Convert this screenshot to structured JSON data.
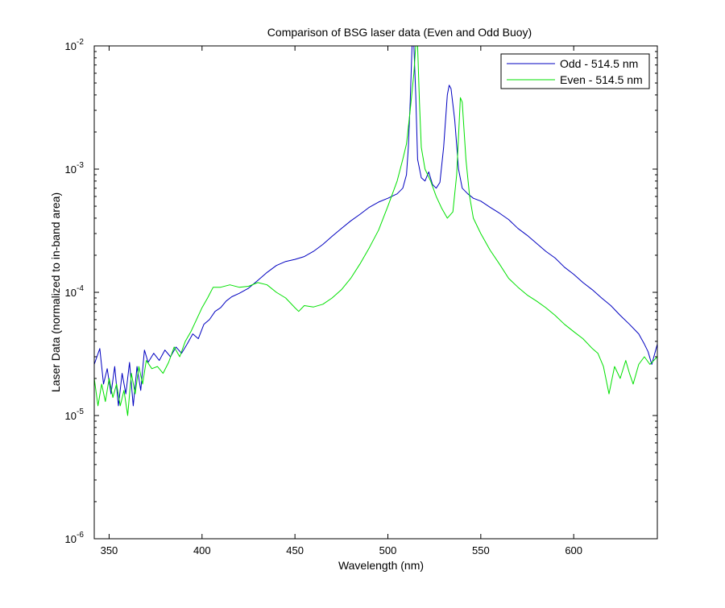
{
  "chart_data": {
    "type": "line",
    "title": "Comparison of BSG laser data (Even and Odd Buoy)",
    "xlabel": "Wavelength (nm)",
    "ylabel": "Laser Data (normalized to in-band area)",
    "xlim": [
      342,
      645
    ],
    "ylim": [
      1e-06,
      0.01
    ],
    "yscale": "log",
    "grid": false,
    "legend_position": "top-right",
    "x_ticks": [
      "350",
      "400",
      "450",
      "500",
      "550",
      "600"
    ],
    "y_ticks": [
      {
        "base": "10",
        "exp": "-6"
      },
      {
        "base": "10",
        "exp": "-5"
      },
      {
        "base": "10",
        "exp": "-4"
      },
      {
        "base": "10",
        "exp": "-3"
      },
      {
        "base": "10",
        "exp": "-2"
      }
    ],
    "series": [
      {
        "name": "Odd - 514.5 nm",
        "color": "#0000c0",
        "points": [
          [
            342,
            2.6e-05
          ],
          [
            345,
            3.5e-05
          ],
          [
            347,
            1.8e-05
          ],
          [
            349,
            2.4e-05
          ],
          [
            351,
            1.5e-05
          ],
          [
            353,
            2.5e-05
          ],
          [
            355,
            1.2e-05
          ],
          [
            357,
            2.2e-05
          ],
          [
            359,
            1.5e-05
          ],
          [
            361,
            2.7e-05
          ],
          [
            363,
            1.2e-05
          ],
          [
            365,
            2.5e-05
          ],
          [
            367,
            1.6e-05
          ],
          [
            369,
            3.4e-05
          ],
          [
            371,
            2.7e-05
          ],
          [
            374,
            3.2e-05
          ],
          [
            377,
            2.8e-05
          ],
          [
            380,
            3.4e-05
          ],
          [
            383,
            3e-05
          ],
          [
            386,
            3.6e-05
          ],
          [
            389,
            3.2e-05
          ],
          [
            392,
            3.8e-05
          ],
          [
            395,
            4.6e-05
          ],
          [
            398,
            4.2e-05
          ],
          [
            401,
            5.5e-05
          ],
          [
            404,
            6e-05
          ],
          [
            407,
            7e-05
          ],
          [
            410,
            7.5e-05
          ],
          [
            413,
            8.5e-05
          ],
          [
            416,
            9.2e-05
          ],
          [
            420,
            9.8e-05
          ],
          [
            425,
            0.000108
          ],
          [
            430,
            0.000125
          ],
          [
            435,
            0.000145
          ],
          [
            440,
            0.000165
          ],
          [
            445,
            0.000178
          ],
          [
            450,
            0.000185
          ],
          [
            455,
            0.000195
          ],
          [
            460,
            0.000215
          ],
          [
            465,
            0.000245
          ],
          [
            470,
            0.000285
          ],
          [
            475,
            0.00033
          ],
          [
            480,
            0.00038
          ],
          [
            485,
            0.00043
          ],
          [
            490,
            0.00049
          ],
          [
            495,
            0.00054
          ],
          [
            500,
            0.00058
          ],
          [
            505,
            0.00063
          ],
          [
            508,
            0.0007
          ],
          [
            510,
            0.0009
          ],
          [
            511,
            0.0015
          ],
          [
            512,
            0.0035
          ],
          [
            513,
            0.01
          ],
          [
            514,
            0.01
          ],
          [
            515,
            0.004
          ],
          [
            516,
            0.0012
          ],
          [
            518,
            0.00085
          ],
          [
            520,
            0.0008
          ],
          [
            522,
            0.00095
          ],
          [
            524,
            0.00075
          ],
          [
            526,
            0.0007
          ],
          [
            528,
            0.00078
          ],
          [
            530,
            0.0015
          ],
          [
            532,
            0.004
          ],
          [
            533,
            0.0048
          ],
          [
            534,
            0.0045
          ],
          [
            536,
            0.0025
          ],
          [
            538,
            0.001
          ],
          [
            540,
            0.0007
          ],
          [
            543,
            0.00063
          ],
          [
            546,
            0.00058
          ],
          [
            550,
            0.00055
          ],
          [
            555,
            0.00049
          ],
          [
            560,
            0.00044
          ],
          [
            565,
            0.00039
          ],
          [
            570,
            0.00033
          ],
          [
            575,
            0.00029
          ],
          [
            580,
            0.00025
          ],
          [
            585,
            0.000215
          ],
          [
            590,
            0.00019
          ],
          [
            595,
            0.00016
          ],
          [
            600,
            0.00014
          ],
          [
            605,
            0.00012
          ],
          [
            610,
            0.000105
          ],
          [
            615,
            9e-05
          ],
          [
            620,
            7.8e-05
          ],
          [
            625,
            6.5e-05
          ],
          [
            630,
            5.5e-05
          ],
          [
            635,
            4.6e-05
          ],
          [
            638,
            3.8e-05
          ],
          [
            640,
            3.3e-05
          ],
          [
            642,
            2.6e-05
          ],
          [
            645,
            3.8e-05
          ]
        ]
      },
      {
        "name": "Even - 514.5 nm",
        "color": "#00e000",
        "points": [
          [
            342,
            2e-05
          ],
          [
            344,
            1.2e-05
          ],
          [
            346,
            1.8e-05
          ],
          [
            348,
            1.3e-05
          ],
          [
            350,
            2e-05
          ],
          [
            352,
            1.4e-05
          ],
          [
            354,
            1.8e-05
          ],
          [
            356,
            1.2e-05
          ],
          [
            358,
            1.6e-05
          ],
          [
            360,
            1e-05
          ],
          [
            362,
            2.2e-05
          ],
          [
            364,
            1.5e-05
          ],
          [
            366,
            2.5e-05
          ],
          [
            368,
            1.8e-05
          ],
          [
            370,
            2.8e-05
          ],
          [
            373,
            2.4e-05
          ],
          [
            376,
            2.5e-05
          ],
          [
            379,
            2.2e-05
          ],
          [
            382,
            2.7e-05
          ],
          [
            385,
            3.6e-05
          ],
          [
            388,
            3e-05
          ],
          [
            391,
            4e-05
          ],
          [
            394,
            4.8e-05
          ],
          [
            397,
            6e-05
          ],
          [
            400,
            7.5e-05
          ],
          [
            403,
            9e-05
          ],
          [
            406,
            0.00011
          ],
          [
            410,
            0.00011
          ],
          [
            415,
            0.000115
          ],
          [
            420,
            0.00011
          ],
          [
            425,
            0.000112
          ],
          [
            430,
            0.00012
          ],
          [
            435,
            0.000115
          ],
          [
            440,
            0.0001
          ],
          [
            445,
            9e-05
          ],
          [
            450,
            7.5e-05
          ],
          [
            452,
            7e-05
          ],
          [
            455,
            7.8e-05
          ],
          [
            460,
            7.6e-05
          ],
          [
            465,
            8e-05
          ],
          [
            470,
            9e-05
          ],
          [
            475,
            0.000105
          ],
          [
            480,
            0.00013
          ],
          [
            485,
            0.00017
          ],
          [
            490,
            0.00023
          ],
          [
            495,
            0.00032
          ],
          [
            500,
            0.0005
          ],
          [
            505,
            0.0008
          ],
          [
            508,
            0.0012
          ],
          [
            510,
            0.0016
          ],
          [
            512,
            0.003
          ],
          [
            514,
            0.006
          ],
          [
            515,
            0.01
          ],
          [
            516,
            0.01
          ],
          [
            517,
            0.0035
          ],
          [
            518,
            0.0015
          ],
          [
            520,
            0.001
          ],
          [
            523,
            0.0008
          ],
          [
            526,
            0.0006
          ],
          [
            529,
            0.00048
          ],
          [
            532,
            0.0004
          ],
          [
            535,
            0.00045
          ],
          [
            537,
            0.0009
          ],
          [
            539,
            0.0038
          ],
          [
            540,
            0.0035
          ],
          [
            542,
            0.0012
          ],
          [
            544,
            0.0006
          ],
          [
            546,
            0.0004
          ],
          [
            550,
            0.0003
          ],
          [
            555,
            0.00022
          ],
          [
            560,
            0.00017
          ],
          [
            565,
            0.00013
          ],
          [
            570,
            0.00011
          ],
          [
            575,
            9.5e-05
          ],
          [
            580,
            8.5e-05
          ],
          [
            585,
            7.5e-05
          ],
          [
            590,
            6.5e-05
          ],
          [
            595,
            5.5e-05
          ],
          [
            600,
            4.8e-05
          ],
          [
            605,
            4.2e-05
          ],
          [
            610,
            3.5e-05
          ],
          [
            613,
            3.2e-05
          ],
          [
            616,
            2.5e-05
          ],
          [
            619,
            1.5e-05
          ],
          [
            622,
            2.5e-05
          ],
          [
            625,
            2e-05
          ],
          [
            628,
            2.8e-05
          ],
          [
            630,
            2.2e-05
          ],
          [
            632,
            1.8e-05
          ],
          [
            635,
            2.6e-05
          ],
          [
            638,
            3e-05
          ],
          [
            641,
            2.6e-05
          ],
          [
            645,
            3e-05
          ]
        ]
      }
    ]
  }
}
